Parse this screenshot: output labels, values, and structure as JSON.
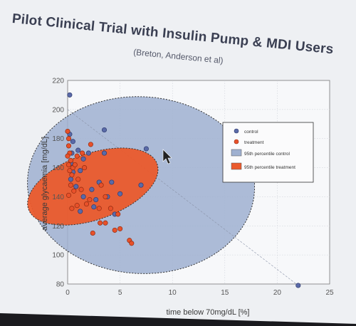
{
  "slide": {
    "title": "Pilot Clinical Trial with Insulin Pump & MDI Users",
    "subtitle": "(Breton, Anderson et al)"
  },
  "colors": {
    "slide_bg": "#eef0f3",
    "control_point": "#5a6aa8",
    "treatment_point": "#e8512a",
    "control_region": "#9fb0d0",
    "treatment_region": "#ea5a2c"
  },
  "chart_data": {
    "type": "scatter",
    "xlabel": "time below 70mg/dL [%]",
    "ylabel": "average glycaemia [mg/dL]",
    "xlim": [
      0,
      25
    ],
    "ylim": [
      80,
      220
    ],
    "xticks": [
      0,
      5,
      10,
      15,
      20,
      25
    ],
    "yticks": [
      80,
      100,
      120,
      140,
      160,
      180,
      200,
      220
    ],
    "grid": true,
    "legend_position": "top-right",
    "legend": [
      {
        "label": "control",
        "kind": "marker",
        "color": "#5a6aa8"
      },
      {
        "label": "treatment",
        "kind": "marker",
        "color": "#e8512a"
      },
      {
        "label": "95th percentile control",
        "kind": "region",
        "color": "#9fb0d0"
      },
      {
        "label": "95th percentile treatment",
        "kind": "region",
        "color": "#ea5a2c"
      }
    ],
    "series": [
      {
        "name": "control",
        "points": [
          [
            0.2,
            210
          ],
          [
            0.2,
            183
          ],
          [
            0.5,
            178
          ],
          [
            0.4,
            170
          ],
          [
            0.3,
            163
          ],
          [
            0.5,
            157
          ],
          [
            0.3,
            152
          ],
          [
            1.0,
            172
          ],
          [
            1.5,
            166
          ],
          [
            2.0,
            170
          ],
          [
            1.2,
            158
          ],
          [
            0.8,
            147
          ],
          [
            1.5,
            140
          ],
          [
            2.3,
            145
          ],
          [
            2.7,
            138
          ],
          [
            3.5,
            186
          ],
          [
            3.5,
            170
          ],
          [
            3.0,
            150
          ],
          [
            3.8,
            140
          ],
          [
            4.2,
            150
          ],
          [
            4.5,
            128
          ],
          [
            5.0,
            142
          ],
          [
            7.5,
            173
          ],
          [
            7.0,
            148
          ],
          [
            1.2,
            130
          ],
          [
            2.5,
            133
          ],
          [
            22.0,
            79
          ]
        ]
      },
      {
        "name": "treatment",
        "points": [
          [
            0.0,
            185
          ],
          [
            0.1,
            180
          ],
          [
            0.1,
            175
          ],
          [
            0.2,
            170
          ],
          [
            0.0,
            168
          ],
          [
            0.3,
            165
          ],
          [
            0.1,
            162
          ],
          [
            0.2,
            158
          ],
          [
            0.5,
            160
          ],
          [
            0.7,
            162
          ],
          [
            0.4,
            155
          ],
          [
            0.9,
            168
          ],
          [
            1.4,
            170
          ],
          [
            2.2,
            176
          ],
          [
            1.6,
            160
          ],
          [
            1.0,
            152
          ],
          [
            0.3,
            148
          ],
          [
            0.1,
            141
          ],
          [
            0.6,
            144
          ],
          [
            1.3,
            145
          ],
          [
            2.1,
            138
          ],
          [
            3.2,
            148
          ],
          [
            3.6,
            140
          ],
          [
            1.8,
            135
          ],
          [
            3.0,
            132
          ],
          [
            4.1,
            132
          ],
          [
            4.8,
            128
          ],
          [
            3.1,
            122
          ],
          [
            5.0,
            118
          ],
          [
            5.9,
            110
          ],
          [
            6.1,
            108
          ],
          [
            2.4,
            115
          ],
          [
            0.4,
            132
          ],
          [
            0.9,
            134
          ],
          [
            4.5,
            117
          ],
          [
            3.6,
            122
          ]
        ]
      }
    ],
    "regions": [
      {
        "name": "95th percentile control",
        "center": [
          7,
          148
        ],
        "semi_axes": [
          11,
          60
        ],
        "rotation_deg": -48
      },
      {
        "name": "95th percentile treatment",
        "center": [
          2.4,
          147
        ],
        "semi_axes": [
          3.9,
          38
        ],
        "rotation_deg": -61
      }
    ],
    "reference_line": {
      "from": [
        0,
        200
      ],
      "to": [
        22,
        79
      ]
    }
  }
}
